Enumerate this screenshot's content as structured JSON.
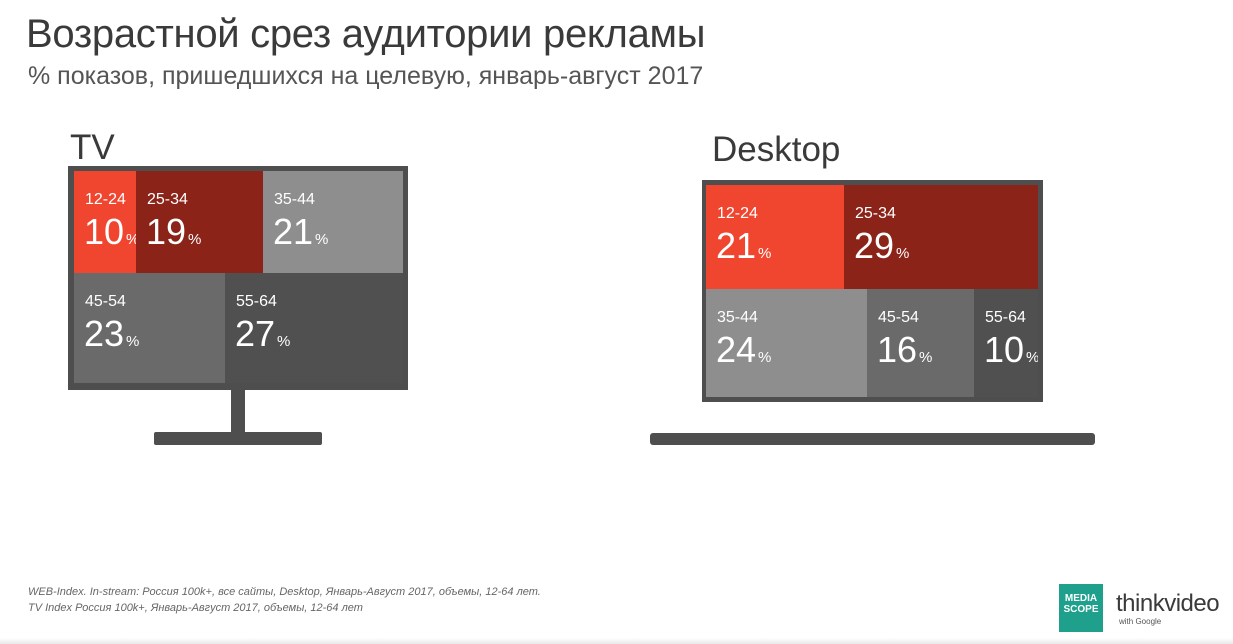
{
  "title": "Возрастной срез аудитории рекламы",
  "subtitle": "% показов, пришедшихся на целевую, январь-август 2017",
  "percent_sign": "%",
  "colors": {
    "frame": "#4e4e4e",
    "age_12_24": "#f04630",
    "age_25_34": "#8b2318",
    "tv_35_44": "#8e8e8e",
    "tv_45_54": "#6a6a6a",
    "tv_55_64": "#505050",
    "desk_35_44": "#8e8e8e",
    "desk_45_54": "#6a6a6a",
    "desk_55_64": "#505050"
  },
  "chart_data": [
    {
      "type": "treemap",
      "title": "TV",
      "unit": "%",
      "items": [
        {
          "label": "12-24",
          "value": 10
        },
        {
          "label": "25-34",
          "value": 19
        },
        {
          "label": "35-44",
          "value": 21
        },
        {
          "label": "45-54",
          "value": 23
        },
        {
          "label": "55-64",
          "value": 27
        }
      ]
    },
    {
      "type": "treemap",
      "title": "Desktop",
      "unit": "%",
      "items": [
        {
          "label": "12-24",
          "value": 21
        },
        {
          "label": "25-34",
          "value": 29
        },
        {
          "label": "35-44",
          "value": 24
        },
        {
          "label": "45-54",
          "value": 16
        },
        {
          "label": "55-64",
          "value": 10
        }
      ]
    }
  ],
  "footnotes": [
    "WEB-Index. In-stream: Россия 100k+, все сайты, Desktop, Январь-Август 2017, объемы, 12-64 лет.",
    "TV Index Россия 100k+, Январь-Август 2017, объемы, 12-64 лет"
  ],
  "logos": {
    "mediascope_line1": "MEDIA",
    "mediascope_line2": "SCOPE",
    "thinkvideo": "thinkvideo",
    "thinkvideo_sub": "with Google"
  }
}
